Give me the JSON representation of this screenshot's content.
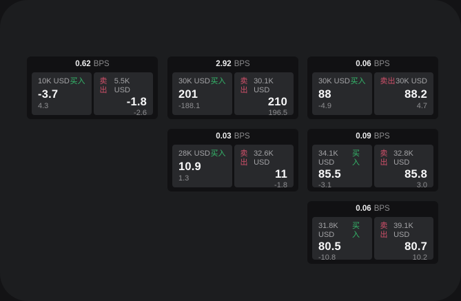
{
  "labels": {
    "bps": "BPS",
    "buy": "买入",
    "sell": "卖出"
  },
  "colors": {
    "buy_accent": "#34b96b",
    "sell_accent": "#d0506a",
    "panel_bg": "#1c1d1f",
    "card_bg": "#111113",
    "tile_bg": "#28292c"
  },
  "cards": [
    {
      "col": 1,
      "row": 1,
      "spread": "0.62",
      "buy": {
        "size": "10K USD",
        "price": "-3.7",
        "delta": "4.3"
      },
      "sell": {
        "size": "5.5K USD",
        "price": "-1.8",
        "delta": "-2.6"
      }
    },
    {
      "col": 2,
      "row": 1,
      "spread": "2.92",
      "buy": {
        "size": "30K USD",
        "price": "201",
        "delta": "-188.1"
      },
      "sell": {
        "size": "30.1K USD",
        "price": "210",
        "delta": "196.5"
      }
    },
    {
      "col": 3,
      "row": 1,
      "spread": "0.06",
      "buy": {
        "size": "30K USD",
        "price": "88",
        "delta": "-4.9"
      },
      "sell": {
        "size": "30K USD",
        "price": "88.2",
        "delta": "4.7"
      }
    },
    {
      "col": 2,
      "row": 2,
      "spread": "0.03",
      "buy": {
        "size": "28K USD",
        "price": "10.9",
        "delta": "1.3"
      },
      "sell": {
        "size": "32.6K USD",
        "price": "11",
        "delta": "-1.8"
      }
    },
    {
      "col": 3,
      "row": 2,
      "spread": "0.09",
      "buy": {
        "size": "34.1K USD",
        "price": "85.5",
        "delta": "-3.1"
      },
      "sell": {
        "size": "32.8K USD",
        "price": "85.8",
        "delta": "3.0"
      }
    },
    {
      "col": 3,
      "row": 3,
      "spread": "0.06",
      "buy": {
        "size": "31.8K USD",
        "price": "80.5",
        "delta": "-10.8"
      },
      "sell": {
        "size": "39.1K USD",
        "price": "80.7",
        "delta": "10.2"
      }
    }
  ]
}
